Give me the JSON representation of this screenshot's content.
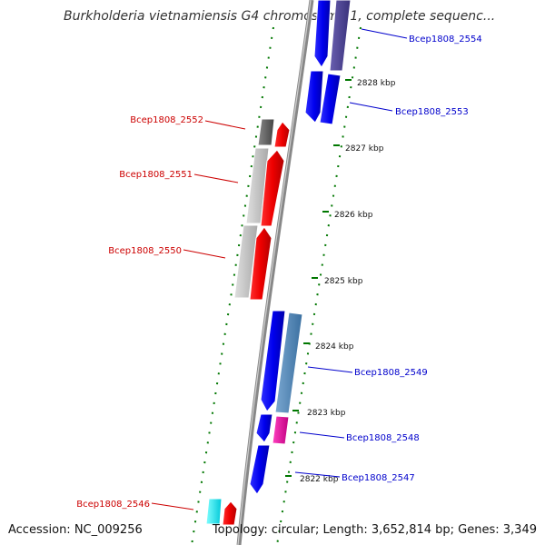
{
  "title": "Burkholderia vietnamiensis G4 chromosome 1, complete sequenc...",
  "footer": {
    "accession": "Accession: NC_009256",
    "topology": "Topology: circular; Length: 3,652,814 bp; Genes: 3,349"
  },
  "ticks": [
    "2828 kbp",
    "2827 kbp",
    "2826 kbp",
    "2825 kbp",
    "2824 kbp",
    "2823 kbp",
    "2822 kbp"
  ],
  "genes": [
    {
      "label": "Bcep1808_2554",
      "color": "#0000cc",
      "strand": "right"
    },
    {
      "label": "Bcep1808_2553",
      "color": "#0000cc",
      "strand": "right"
    },
    {
      "label": "Bcep1808_2552",
      "color": "#cc0000",
      "strand": "left"
    },
    {
      "label": "Bcep1808_2551",
      "color": "#cc0000",
      "strand": "left"
    },
    {
      "label": "Bcep1808_2550",
      "color": "#cc0000",
      "strand": "left"
    },
    {
      "label": "Bcep1808_2549",
      "color": "#0000cc",
      "strand": "right"
    },
    {
      "label": "Bcep1808_2548",
      "color": "#0000cc",
      "strand": "right"
    },
    {
      "label": "Bcep1808_2547",
      "color": "#0000cc",
      "strand": "right"
    },
    {
      "label": "Bcep1808_2546",
      "color": "#cc0000",
      "strand": "left"
    }
  ]
}
